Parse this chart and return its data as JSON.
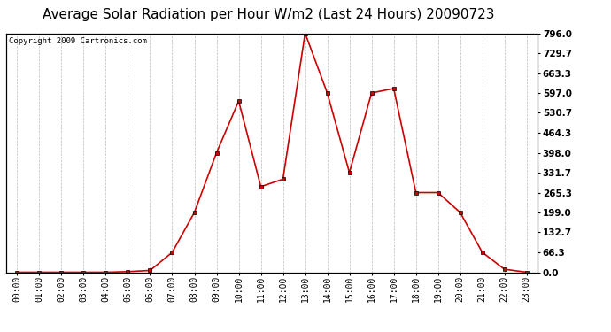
{
  "title": "Average Solar Radiation per Hour W/m2 (Last 24 Hours) 20090723",
  "copyright": "Copyright 2009 Cartronics.com",
  "hours": [
    "00:00",
    "01:00",
    "02:00",
    "03:00",
    "04:00",
    "05:00",
    "06:00",
    "07:00",
    "08:00",
    "09:00",
    "10:00",
    "11:00",
    "12:00",
    "13:00",
    "14:00",
    "15:00",
    "16:00",
    "17:00",
    "18:00",
    "19:00",
    "20:00",
    "21:00",
    "22:00",
    "23:00"
  ],
  "values": [
    0.0,
    0.0,
    0.0,
    0.0,
    0.0,
    2.0,
    6.0,
    66.3,
    199.0,
    398.0,
    570.0,
    285.0,
    310.0,
    796.0,
    597.0,
    331.7,
    597.0,
    612.0,
    265.3,
    265.3,
    199.0,
    66.3,
    10.0,
    0.0
  ],
  "yticks": [
    0.0,
    66.3,
    132.7,
    199.0,
    265.3,
    331.7,
    398.0,
    464.3,
    530.7,
    597.0,
    663.3,
    729.7,
    796.0
  ],
  "line_color": "#cc0000",
  "grid_color": "#bbbbbb",
  "bg_color": "#ffffff",
  "title_fontsize": 11,
  "copyright_fontsize": 6.5,
  "tick_fontsize": 7.5,
  "xtick_fontsize": 7,
  "ymax": 796.0,
  "ymin": 0.0
}
